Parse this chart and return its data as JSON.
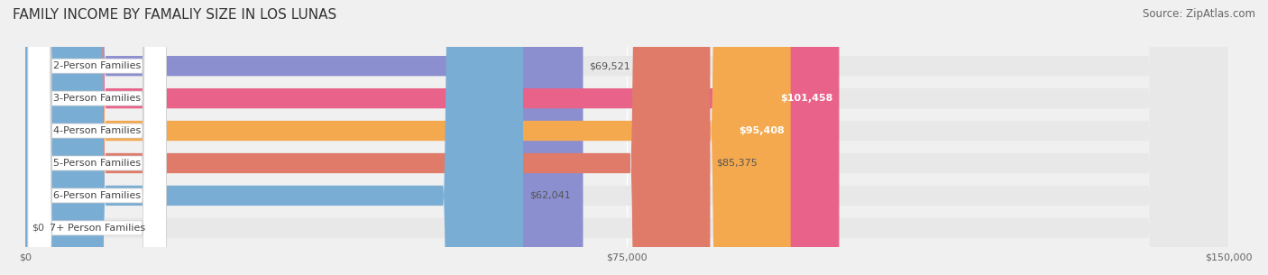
{
  "title": "FAMILY INCOME BY FAMALIY SIZE IN LOS LUNAS",
  "source": "Source: ZipAtlas.com",
  "categories": [
    "2-Person Families",
    "3-Person Families",
    "4-Person Families",
    "5-Person Families",
    "6-Person Families",
    "7+ Person Families"
  ],
  "values": [
    69521,
    101458,
    95408,
    85375,
    62041,
    0
  ],
  "bar_colors": [
    "#8b8fcf",
    "#e8628a",
    "#f5a94e",
    "#e07b6a",
    "#7aadd4",
    "#c9b8d8"
  ],
  "bar_labels": [
    "$69,521",
    "$101,458",
    "$95,408",
    "$85,375",
    "$62,041",
    "$0"
  ],
  "label_inside": [
    false,
    true,
    true,
    false,
    false,
    false
  ],
  "xlim": [
    0,
    150000
  ],
  "xticks": [
    0,
    75000,
    150000
  ],
  "xticklabels": [
    "$0",
    "$75,000",
    "$150,000"
  ],
  "background_color": "#f0f0f0",
  "bar_bg_color": "#e8e8e8",
  "title_fontsize": 11,
  "source_fontsize": 8.5,
  "label_fontsize": 8,
  "category_fontsize": 8,
  "bar_height": 0.62,
  "grid_color": "#ffffff"
}
